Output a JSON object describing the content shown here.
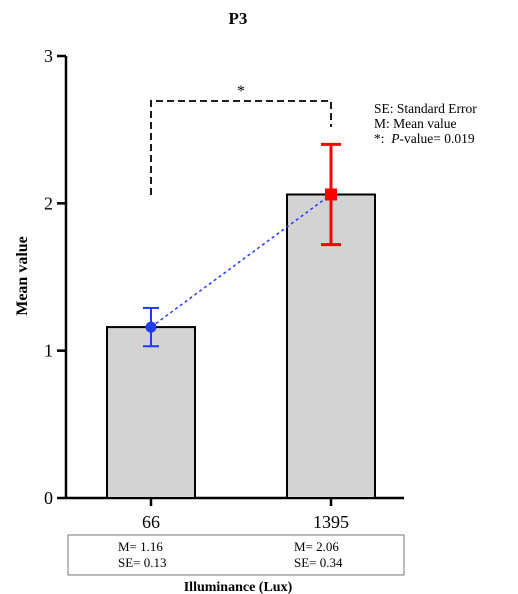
{
  "chart_data": {
    "type": "bar",
    "title": "P3",
    "xlabel": "Illuminance (Lux)",
    "ylabel": "Mean value",
    "ylim": [
      0,
      3
    ],
    "yticks": [
      0,
      1,
      2,
      3
    ],
    "categories": [
      "66",
      "1395"
    ],
    "values": [
      1.16,
      2.06
    ],
    "errors": [
      0.13,
      0.34
    ],
    "bar_color": "#d3d3d3",
    "marker_colors": [
      "#1f3bff",
      "#ff0000"
    ],
    "connector_color": "#1f3bff",
    "significance": {
      "pair": [
        "66",
        "1395"
      ],
      "label": "*"
    },
    "legend": [
      {
        "key": "SE",
        "text": "Standard Error",
        "label": "SE: Standard Error"
      },
      {
        "key": "M",
        "text": "Mean value",
        "label": "M: Mean value"
      },
      {
        "key": "*",
        "text": "P-value= 0.019",
        "label_prefix": "*:  ",
        "label_italic": "P",
        "label_suffix": "-value= 0.019"
      }
    ],
    "stats_table": [
      {
        "m_label": "M= 1.16",
        "se_label": "SE= 0.13"
      },
      {
        "m_label": "M= 2.06",
        "se_label": "SE= 0.34"
      }
    ]
  }
}
